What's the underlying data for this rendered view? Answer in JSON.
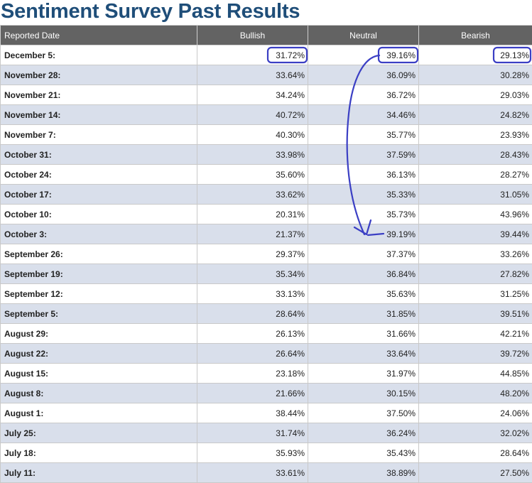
{
  "page": {
    "title": "Sentiment Survey Past Results"
  },
  "table": {
    "headers": [
      "Reported Date",
      "Bullish",
      "Neutral",
      "Bearish"
    ],
    "rows": [
      {
        "date": "December 5:",
        "bullish": "31.72%",
        "neutral": "39.16%",
        "bearish": "29.13%"
      },
      {
        "date": "November 28:",
        "bullish": "33.64%",
        "neutral": "36.09%",
        "bearish": "30.28%"
      },
      {
        "date": "November 21:",
        "bullish": "34.24%",
        "neutral": "36.72%",
        "bearish": "29.03%"
      },
      {
        "date": "November 14:",
        "bullish": "40.72%",
        "neutral": "34.46%",
        "bearish": "24.82%"
      },
      {
        "date": "November 7:",
        "bullish": "40.30%",
        "neutral": "35.77%",
        "bearish": "23.93%"
      },
      {
        "date": "October 31:",
        "bullish": "33.98%",
        "neutral": "37.59%",
        "bearish": "28.43%"
      },
      {
        "date": "October 24:",
        "bullish": "35.60%",
        "neutral": "36.13%",
        "bearish": "28.27%"
      },
      {
        "date": "October 17:",
        "bullish": "33.62%",
        "neutral": "35.33%",
        "bearish": "31.05%"
      },
      {
        "date": "October 10:",
        "bullish": "20.31%",
        "neutral": "35.73%",
        "bearish": "43.96%"
      },
      {
        "date": "October 3:",
        "bullish": "21.37%",
        "neutral": "39.19%",
        "bearish": "39.44%"
      },
      {
        "date": "September 26:",
        "bullish": "29.37%",
        "neutral": "37.37%",
        "bearish": "33.26%"
      },
      {
        "date": "September 19:",
        "bullish": "35.34%",
        "neutral": "36.84%",
        "bearish": "27.82%"
      },
      {
        "date": "September 12:",
        "bullish": "33.13%",
        "neutral": "35.63%",
        "bearish": "31.25%"
      },
      {
        "date": "September 5:",
        "bullish": "28.64%",
        "neutral": "31.85%",
        "bearish": "39.51%"
      },
      {
        "date": "August 29:",
        "bullish": "26.13%",
        "neutral": "31.66%",
        "bearish": "42.21%"
      },
      {
        "date": "August 22:",
        "bullish": "26.64%",
        "neutral": "33.64%",
        "bearish": "39.72%"
      },
      {
        "date": "August 15:",
        "bullish": "23.18%",
        "neutral": "31.97%",
        "bearish": "44.85%"
      },
      {
        "date": "August 8:",
        "bullish": "21.66%",
        "neutral": "30.15%",
        "bearish": "48.20%"
      },
      {
        "date": "August 1:",
        "bullish": "38.44%",
        "neutral": "37.50%",
        "bearish": "24.06%"
      },
      {
        "date": "July 25:",
        "bullish": "31.74%",
        "neutral": "36.24%",
        "bearish": "32.02%"
      },
      {
        "date": "July 18:",
        "bullish": "35.93%",
        "neutral": "35.43%",
        "bearish": "28.64%"
      },
      {
        "date": "July 11:",
        "bullish": "33.61%",
        "neutral": "38.89%",
        "bearish": "27.50%"
      }
    ]
  },
  "annotation": {
    "color": "#3b3fc4",
    "highlighted_cells": [
      "December 5: Bullish",
      "December 5: Neutral",
      "December 5: Bearish"
    ],
    "arrow": "from December 5: Neutral to October 3: Neutral"
  }
}
